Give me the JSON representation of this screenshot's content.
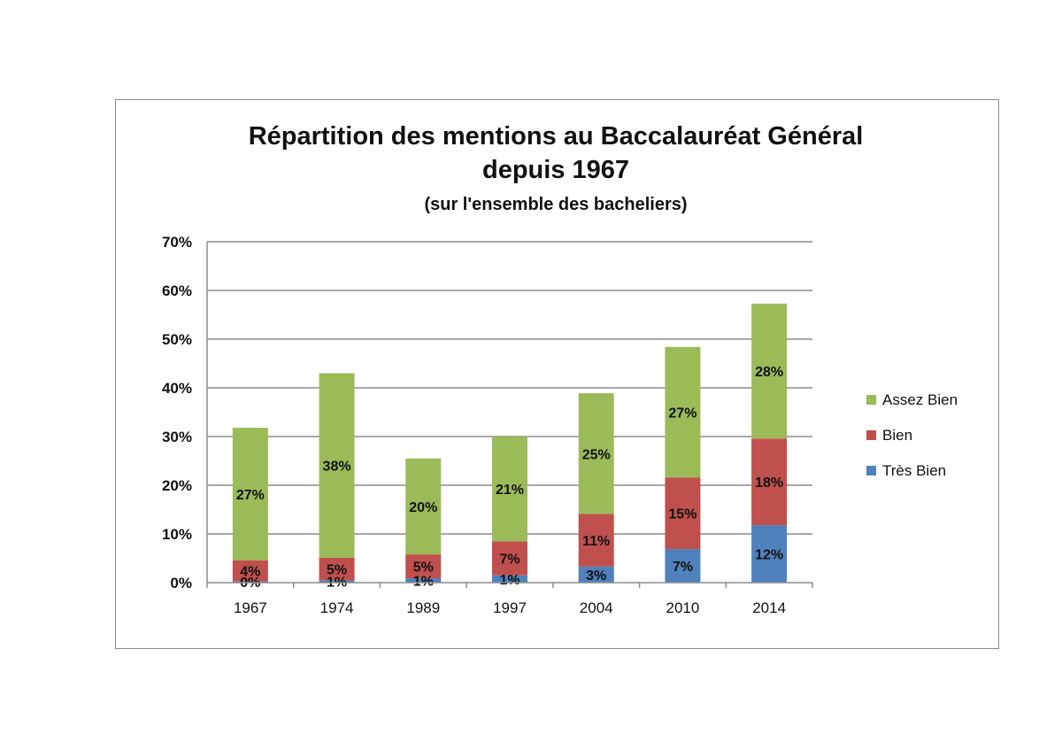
{
  "chart_data": {
    "type": "bar",
    "stacked": true,
    "title": "Répartition des mentions au Baccalauréat Général",
    "title_line2": "depuis 1967",
    "subtitle": "(sur l'ensemble des bacheliers)",
    "categories": [
      "1967",
      "1974",
      "1989",
      "1997",
      "2004",
      "2010",
      "2014"
    ],
    "series": [
      {
        "name": "Très Bien",
        "color": "#4f81bd",
        "values": [
          0.3,
          0.5,
          0.9,
          1.5,
          3.3,
          6.9,
          11.8
        ],
        "labels": [
          "0%",
          "1%",
          "1%",
          "1%",
          "3%",
          "7%",
          "12%"
        ]
      },
      {
        "name": "Bien",
        "color": "#c0504d",
        "values": [
          4.3,
          4.6,
          4.9,
          7.0,
          10.8,
          14.7,
          17.8
        ],
        "labels": [
          "4%",
          "5%",
          "5%",
          "7%",
          "11%",
          "15%",
          "18%"
        ]
      },
      {
        "name": "Assez Bien",
        "color": "#9bbb59",
        "values": [
          27.2,
          37.9,
          19.7,
          21.5,
          24.8,
          26.8,
          27.7
        ],
        "labels": [
          "27%",
          "38%",
          "20%",
          "21%",
          "25%",
          "27%",
          "28%"
        ]
      }
    ],
    "ylim": [
      0,
      70
    ],
    "yticks": [
      "0%",
      "10%",
      "20%",
      "30%",
      "40%",
      "50%",
      "60%",
      "70%"
    ],
    "grid": true,
    "legend_position": "right"
  }
}
